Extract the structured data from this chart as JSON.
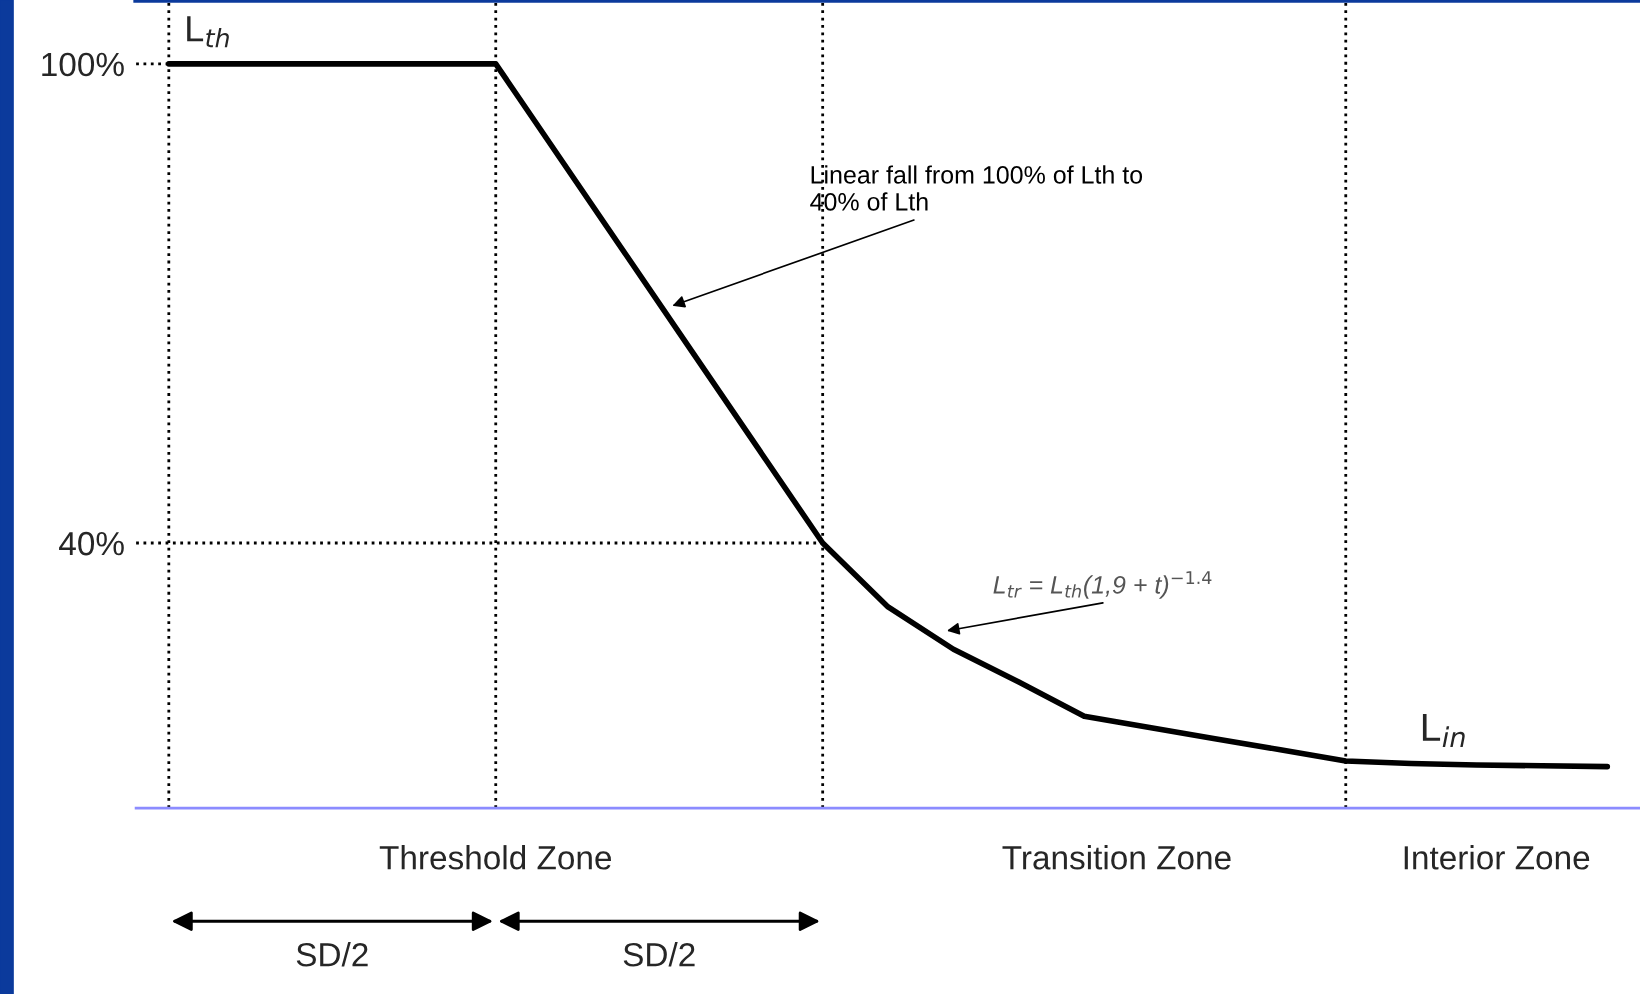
{
  "chart_data": {
    "type": "line",
    "categories": [
      null,
      null,
      null,
      null,
      null,
      null,
      null,
      null,
      null,
      null,
      null,
      null,
      null,
      null,
      null,
      null,
      null,
      null,
      null,
      null,
      null,
      null,
      null
    ],
    "ylim": [
      6.8,
      108
    ],
    "yticks": [
      {
        "value": 100,
        "label": "100%"
      },
      {
        "value": 40,
        "label": "40%"
      }
    ],
    "tick_labels": "y",
    "grid": "x",
    "series": [
      {
        "color": "#000000",
        "values": [
          100,
          100,
          100,
          100,
          100,
          100,
          88,
          76,
          64,
          52,
          40,
          32,
          26.7,
          22.6,
          18.3,
          16.9,
          15.5,
          14.1,
          12.7,
          12.4,
          12.2,
          12.1,
          12
        ]
      }
    ],
    "ref_lines": [
      {
        "axis": "y",
        "value": 40,
        "color": "#000000",
        "line_style": "dotted"
      }
    ],
    "annotations": [
      "L$_{th}$",
      "L$_{in}$",
      "Linear fall from 100% of Lth to\n40% of Lth",
      "L$_{tr}$ = L$_{th}$(1,9 + t)$^{−1.4}$",
      "Threshold Zone",
      "Transition Zone",
      "Interior Zone",
      "SD/2",
      "SD/2"
    ]
  }
}
